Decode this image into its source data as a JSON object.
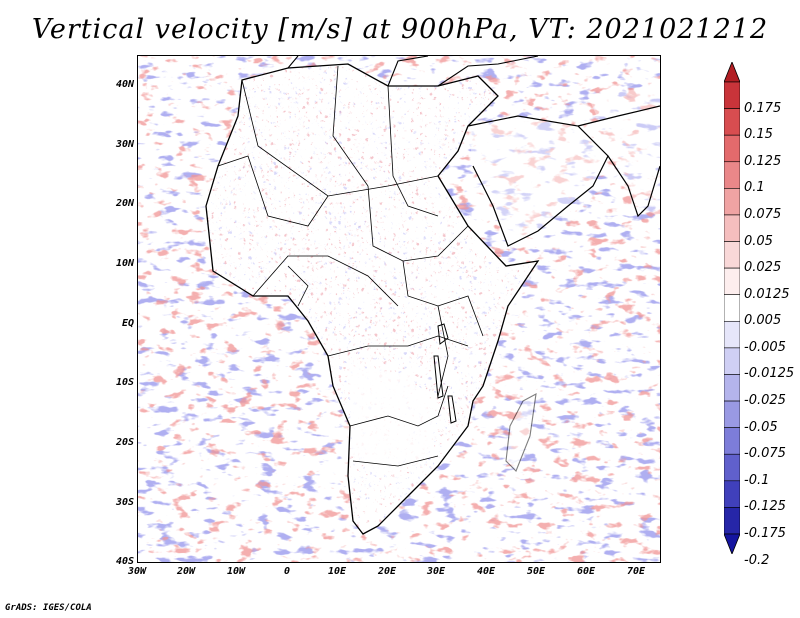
{
  "title": "Vertical velocity [m/s] at 900hPa, VT: 2021021212",
  "credit": "GrADS: IGES/COLA",
  "lat_labels": [
    "40N",
    "30N",
    "20N",
    "10N",
    "EQ",
    "10S",
    "20S",
    "30S",
    "40S"
  ],
  "lon_labels": [
    "30W",
    "20W",
    "10W",
    "0",
    "10E",
    "20E",
    "30E",
    "40E",
    "50E",
    "60E",
    "70E"
  ],
  "colorbar": {
    "labels": [
      "0.175",
      "0.15",
      "0.125",
      "0.1",
      "0.075",
      "0.05",
      "0.025",
      "0.0125",
      "0.005",
      "-0.005",
      "-0.0125",
      "-0.025",
      "-0.05",
      "-0.075",
      "-0.1",
      "-0.125",
      "-0.175",
      "-0.2"
    ],
    "colors": [
      "#b21e23",
      "#c9343a",
      "#d84d50",
      "#e36a6c",
      "#ea8789",
      "#f0a3a3",
      "#f5bebe",
      "#f9d8d8",
      "#fdeeee",
      "#ffffff",
      "#e6e6fa",
      "#cfcff4",
      "#b4b4ec",
      "#9999e3",
      "#7d7dd9",
      "#6060cc",
      "#4040bb",
      "#2626a8",
      "#1414a0"
    ]
  },
  "colors": {
    "positive": "#e05050",
    "negative": "#5a5ad8",
    "coast": "#000000"
  }
}
